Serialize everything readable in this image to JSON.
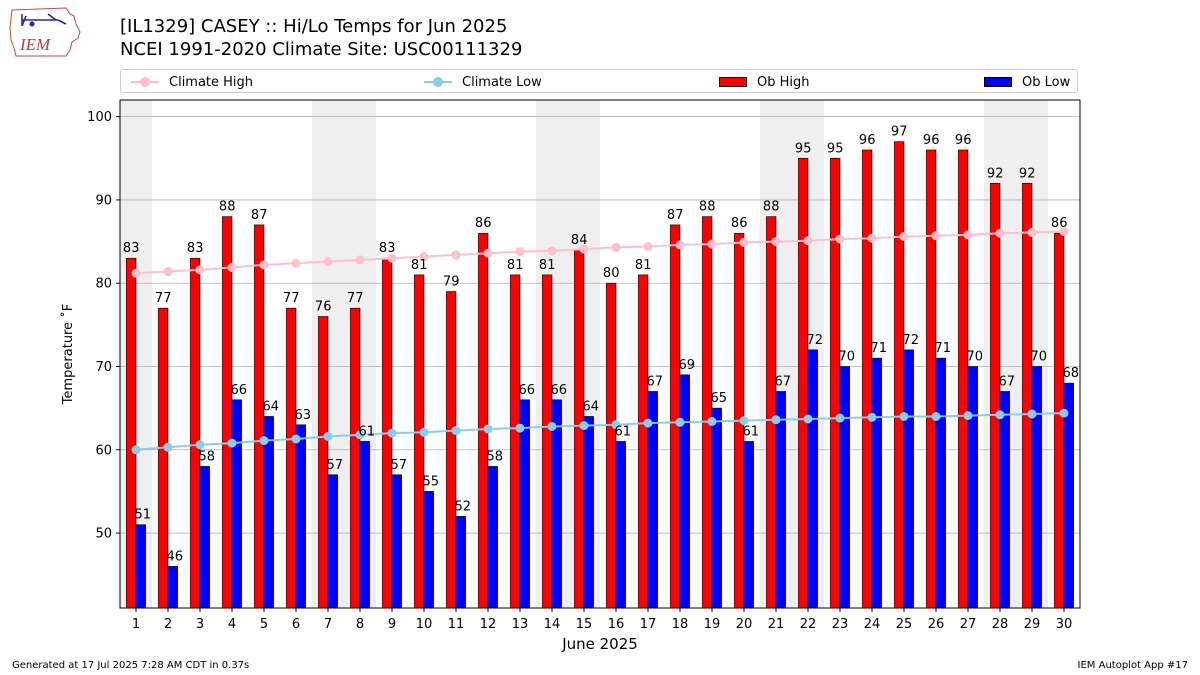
{
  "header": {
    "title_line1": "[IL1329] CASEY :: Hi/Lo Temps for Jun 2025",
    "title_line2": "NCEI 1991-2020 Climate Site: USC00111329",
    "logo_text": "IEM"
  },
  "legend": {
    "climate_high": "Climate High",
    "climate_low": "Climate Low",
    "ob_high": "Ob High",
    "ob_low": "Ob Low"
  },
  "footer": {
    "generated": "Generated at 17 Jul 2025 7:28 AM CDT in 0.37s",
    "app": "IEM Autoplot App #17"
  },
  "colors": {
    "ob_high": "#ff0000",
    "ob_low": "#0000ff",
    "climate_high": "#ffc0cb",
    "climate_low": "#87ceeb",
    "weekend_band": "#efefef",
    "grid": "#b0b0b0"
  },
  "chart_data": {
    "type": "bar",
    "xlabel": "June 2025",
    "ylabel": "Temperature ˚F",
    "ylim": [
      41,
      102
    ],
    "yticks": [
      50,
      60,
      70,
      80,
      90,
      100
    ],
    "grid": "horizontal",
    "legend_position": "top",
    "categories": [
      "1",
      "2",
      "3",
      "4",
      "5",
      "6",
      "7",
      "8",
      "9",
      "10",
      "11",
      "12",
      "13",
      "14",
      "15",
      "16",
      "17",
      "18",
      "19",
      "20",
      "21",
      "22",
      "23",
      "24",
      "25",
      "26",
      "27",
      "28",
      "29",
      "30"
    ],
    "shaded_days": [
      1,
      7,
      8,
      14,
      15,
      21,
      22,
      28,
      29
    ],
    "series": [
      {
        "name": "Ob High",
        "kind": "bar",
        "values": [
          83,
          77,
          83,
          88,
          87,
          77,
          76,
          77,
          83,
          81,
          79,
          86,
          81,
          81,
          84,
          80,
          81,
          87,
          88,
          86,
          88,
          95,
          95,
          96,
          97,
          96,
          96,
          92,
          92,
          86
        ]
      },
      {
        "name": "Ob Low",
        "kind": "bar",
        "values": [
          51,
          46,
          58,
          66,
          64,
          63,
          57,
          61,
          57,
          55,
          52,
          58,
          66,
          66,
          64,
          61,
          67,
          69,
          65,
          61,
          67,
          72,
          70,
          71,
          72,
          71,
          70,
          67,
          70,
          68
        ]
      },
      {
        "name": "Climate High",
        "kind": "line",
        "values": [
          81.2,
          81.4,
          81.6,
          81.9,
          82.2,
          82.4,
          82.6,
          82.8,
          83.0,
          83.2,
          83.4,
          83.6,
          83.8,
          83.9,
          84.1,
          84.3,
          84.4,
          84.6,
          84.7,
          84.9,
          85.0,
          85.1,
          85.3,
          85.4,
          85.6,
          85.7,
          85.8,
          86.0,
          86.1,
          86.2
        ]
      },
      {
        "name": "Climate Low",
        "kind": "line",
        "values": [
          60.0,
          60.3,
          60.6,
          60.8,
          61.1,
          61.3,
          61.6,
          61.8,
          62.0,
          62.1,
          62.3,
          62.5,
          62.6,
          62.8,
          62.9,
          63.0,
          63.2,
          63.3,
          63.4,
          63.5,
          63.6,
          63.7,
          63.8,
          63.9,
          64.0,
          64.0,
          64.1,
          64.2,
          64.3,
          64.4
        ]
      }
    ]
  }
}
